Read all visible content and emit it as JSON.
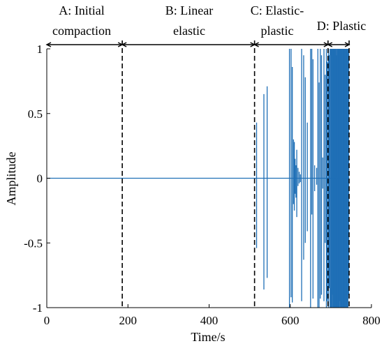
{
  "chart_data": {
    "type": "line",
    "title": "",
    "xlabel": "Time/s",
    "ylabel": "Amplitude",
    "xlim": [
      0,
      800
    ],
    "ylim": [
      -1,
      1
    ],
    "x_ticks": [
      0,
      200,
      400,
      600,
      800
    ],
    "x_tick_labels": [
      "0",
      "200",
      "400",
      "600",
      "800"
    ],
    "y_ticks": [
      1,
      0.5,
      0,
      -0.5,
      -1
    ],
    "y_tick_labels": [
      "1",
      "0.5",
      "0",
      "-0.5",
      "-1"
    ],
    "grid": false,
    "legend": "none",
    "colors": {
      "signal": "#1f6fb6",
      "axis": "#000000",
      "divider": "#000000"
    },
    "baseline": 0,
    "stage_boundaries_x": [
      186,
      512,
      693,
      745
    ],
    "stages": [
      {
        "label_lines": [
          "A: Initial",
          "compaction"
        ],
        "x_start": 0,
        "x_end": 186
      },
      {
        "label_lines": [
          "B: Linear",
          "elastic"
        ],
        "x_start": 186,
        "x_end": 512
      },
      {
        "label_lines": [
          "C: Elastic-",
          "plastic"
        ],
        "x_start": 512,
        "x_end": 693
      },
      {
        "label_lines": [
          "D: Plastic"
        ],
        "x_start": 693,
        "x_end": 745
      }
    ],
    "series": [
      {
        "values_description_free": true,
        "spikes": [
          [
            517,
            0.43,
            -0.54
          ],
          [
            535,
            0.65,
            -0.86
          ],
          [
            543,
            0.71,
            -0.77
          ],
          [
            598,
            1.0,
            -1.0
          ],
          [
            602,
            1.0,
            -0.92
          ],
          [
            605,
            0.86,
            -0.96
          ],
          [
            608,
            0.3,
            -0.2
          ],
          [
            610,
            0.28,
            -0.25
          ],
          [
            612,
            0.15,
            -0.12
          ],
          [
            614,
            0.1,
            -0.15
          ],
          [
            616,
            0.22,
            -0.3
          ],
          [
            619,
            0.08,
            -0.06
          ],
          [
            622,
            0.05,
            -0.04
          ],
          [
            625,
            0.03,
            -0.03
          ],
          [
            628,
            1.0,
            -0.95
          ],
          [
            633,
            0.95,
            -0.63
          ],
          [
            637,
            0.78,
            -0.5
          ],
          [
            642,
            0.43,
            -0.41
          ],
          [
            650,
            1.0,
            -1.0
          ],
          [
            653,
            1.0,
            -0.28
          ],
          [
            656,
            0.92,
            -0.93
          ],
          [
            660,
            0.1,
            -0.1
          ],
          [
            665,
            0.08,
            -0.05
          ],
          [
            668,
            1.0,
            -1.0
          ],
          [
            671,
            0.74,
            -1.0
          ],
          [
            674,
            1.0,
            -0.93
          ],
          [
            677,
            0.95,
            -0.9
          ],
          [
            680,
            0.16,
            -0.08
          ],
          [
            683,
            1.0,
            -0.95
          ],
          [
            686,
            0.8,
            -0.5
          ],
          [
            689,
            1.0,
            -1.0
          ],
          [
            691,
            0.9,
            -0.95
          ],
          [
            694,
            1.0,
            -1.0
          ],
          [
            696,
            0.95,
            -0.85
          ],
          [
            698,
            1.0,
            -1.0
          ],
          [
            700,
            1.0,
            -1.0
          ],
          [
            702,
            1.0,
            -1.0
          ],
          [
            704,
            1.0,
            -0.9
          ],
          [
            706,
            1.0,
            -1.0
          ],
          [
            708,
            1.0,
            -1.0
          ],
          [
            710,
            1.0,
            -1.0
          ],
          [
            712,
            1.0,
            -1.0
          ],
          [
            714,
            0.95,
            -1.0
          ],
          [
            716,
            1.0,
            -1.0
          ],
          [
            718,
            1.0,
            -1.0
          ],
          [
            720,
            1.0,
            -1.0
          ],
          [
            722,
            1.0,
            -0.95
          ],
          [
            724,
            1.0,
            -1.0
          ],
          [
            726,
            1.0,
            -1.0
          ],
          [
            728,
            1.0,
            -1.0
          ],
          [
            730,
            1.0,
            -1.0
          ],
          [
            732,
            1.0,
            -1.0
          ],
          [
            734,
            1.0,
            -1.0
          ],
          [
            736,
            1.0,
            -1.0
          ],
          [
            738,
            1.0,
            -1.0
          ],
          [
            740,
            1.0,
            -1.0
          ],
          [
            742,
            1.0,
            -1.0
          ],
          [
            744,
            1.0,
            -0.9
          ]
        ]
      }
    ]
  }
}
